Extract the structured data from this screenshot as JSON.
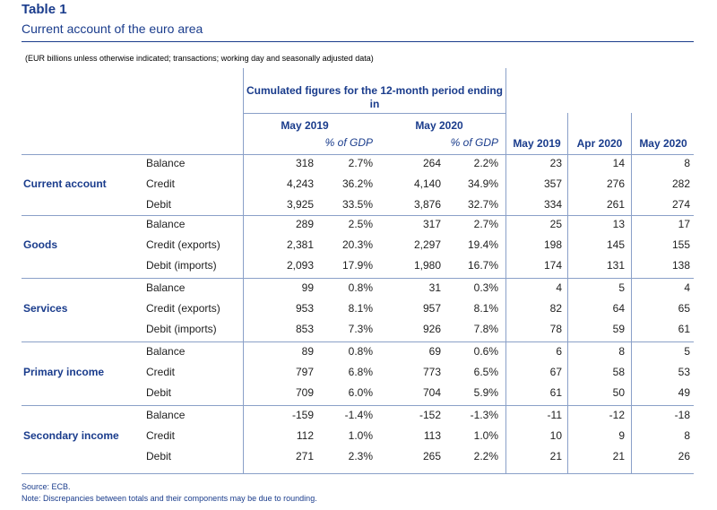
{
  "title": "Table 1",
  "subtitle": "Current account of the euro area",
  "note_top": "(EUR billions unless otherwise indicated; transactions; working day and seasonally adjusted data)",
  "header": {
    "cumulated": "Cumulated figures for the 12-month period ending in",
    "may2019": "May 2019",
    "may2020": "May 2020",
    "pct_gdp": "% of GDP",
    "col_may2019": "May 2019",
    "col_apr2020": "Apr 2020",
    "col_may2020": "May 2020"
  },
  "groups": [
    {
      "name": "Current account",
      "rows": [
        {
          "label": "Balance",
          "v": [
            "318",
            "2.7%",
            "264",
            "2.2%",
            "23",
            "14",
            "8"
          ]
        },
        {
          "label": "Credit",
          "v": [
            "4,243",
            "36.2%",
            "4,140",
            "34.9%",
            "357",
            "276",
            "282"
          ]
        },
        {
          "label": "Debit",
          "v": [
            "3,925",
            "33.5%",
            "3,876",
            "32.7%",
            "334",
            "261",
            "274"
          ]
        }
      ]
    },
    {
      "name": "Goods",
      "rows": [
        {
          "label": "Balance",
          "v": [
            "289",
            "2.5%",
            "317",
            "2.7%",
            "25",
            "13",
            "17"
          ]
        },
        {
          "label": "Credit (exports)",
          "v": [
            "2,381",
            "20.3%",
            "2,297",
            "19.4%",
            "198",
            "145",
            "155"
          ]
        },
        {
          "label": "Debit (imports)",
          "v": [
            "2,093",
            "17.9%",
            "1,980",
            "16.7%",
            "174",
            "131",
            "138"
          ]
        }
      ]
    },
    {
      "name": "Services",
      "rows": [
        {
          "label": "Balance",
          "v": [
            "99",
            "0.8%",
            "31",
            "0.3%",
            "4",
            "5",
            "4"
          ]
        },
        {
          "label": "Credit (exports)",
          "v": [
            "953",
            "8.1%",
            "957",
            "8.1%",
            "82",
            "64",
            "65"
          ]
        },
        {
          "label": "Debit (imports)",
          "v": [
            "853",
            "7.3%",
            "926",
            "7.8%",
            "78",
            "59",
            "61"
          ]
        }
      ]
    },
    {
      "name": "Primary income",
      "rows": [
        {
          "label": "Balance",
          "v": [
            "89",
            "0.8%",
            "69",
            "0.6%",
            "6",
            "8",
            "5"
          ]
        },
        {
          "label": "Credit",
          "v": [
            "797",
            "6.8%",
            "773",
            "6.5%",
            "67",
            "58",
            "53"
          ]
        },
        {
          "label": "Debit",
          "v": [
            "709",
            "6.0%",
            "704",
            "5.9%",
            "61",
            "50",
            "49"
          ]
        }
      ]
    },
    {
      "name": "Secondary income",
      "rows": [
        {
          "label": "Balance",
          "v": [
            "-159",
            "-1.4%",
            "-152",
            "-1.3%",
            "-11",
            "-12",
            "-18"
          ]
        },
        {
          "label": "Credit",
          "v": [
            "112",
            "1.0%",
            "113",
            "1.0%",
            "10",
            "9",
            "8"
          ]
        },
        {
          "label": "Debit",
          "v": [
            "271",
            "2.3%",
            "265",
            "2.2%",
            "21",
            "21",
            "26"
          ]
        }
      ]
    }
  ],
  "footer": {
    "source": "Source: ECB.",
    "note": "Note: Discrepancies between totals and their components may be due to rounding."
  }
}
